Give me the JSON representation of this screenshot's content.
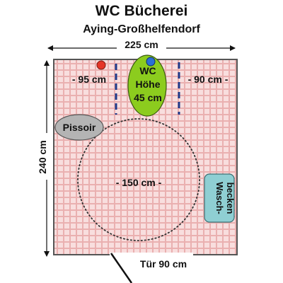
{
  "title": "WC Bücherei",
  "subtitle": "Aying-Großhelfendorf",
  "dimensions": {
    "width": "225 cm",
    "height": "240 cm",
    "door": "Tür 90 cm",
    "turning_circle": "- 150 cm -",
    "left_clearance": "- 95 cm",
    "right_clearance": "- 90 cm -"
  },
  "wc": {
    "line1": "WC",
    "line2": "Höhe",
    "line3": "45 cm"
  },
  "urinal": "Pissoir",
  "sink": {
    "line1": "Wasch-",
    "line2": "becken"
  },
  "colors": {
    "floor": "#f8dede",
    "grid": "#eab0b0",
    "wc": "#8ccc1e",
    "urinal": "#b4b4b4",
    "sink": "#8fcfd3",
    "grab_bar": "#1e3a8a",
    "red_button": "#e53528",
    "blue_button": "#2c6fd6"
  }
}
